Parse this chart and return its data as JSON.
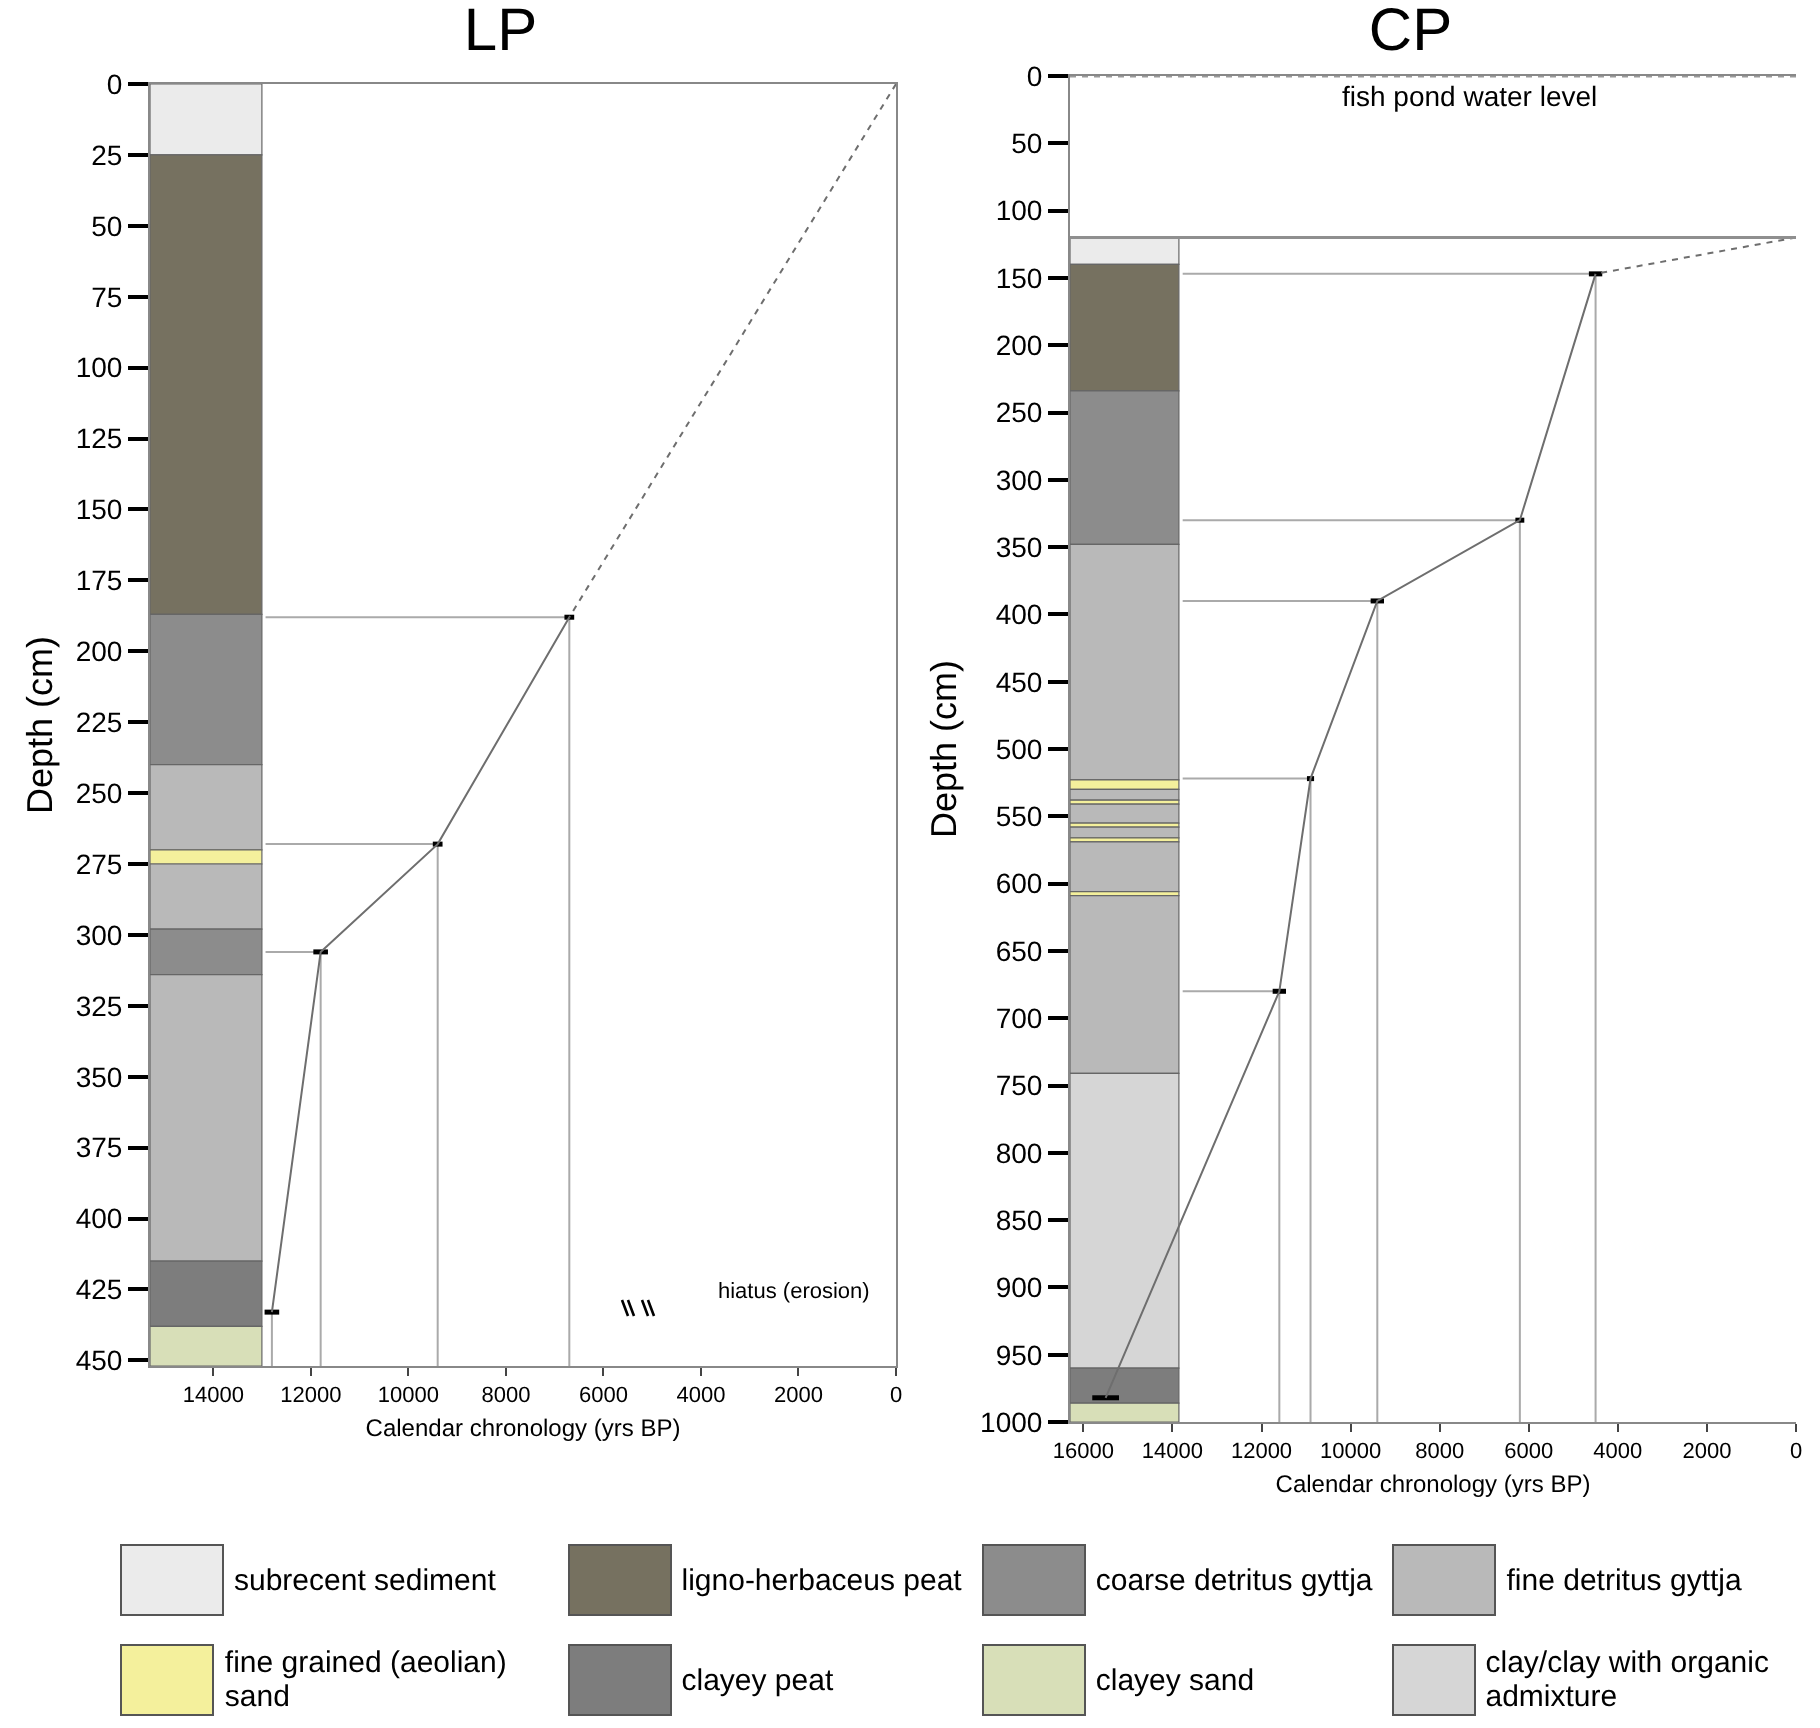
{
  "chart_data": [
    {
      "type": "line",
      "title": "LP",
      "xlabel": "Calendar chronology (yrs BP)",
      "ylabel": "Depth (cm)",
      "xlim": [
        15300,
        0
      ],
      "xticks": [
        14000,
        12000,
        10000,
        8000,
        6000,
        4000,
        2000,
        0
      ],
      "ylim": [
        452,
        0
      ],
      "yticks": [
        0,
        25,
        50,
        75,
        100,
        125,
        150,
        175,
        200,
        225,
        250,
        275,
        300,
        325,
        350,
        375,
        400,
        425,
        450
      ],
      "grid": false,
      "marker": "none",
      "series": [
        {
          "type": "line",
          "color": "#aaaaaa",
          "x": [
            12930,
            6700,
            6700
          ],
          "values": [
            188,
            188,
            452
          ],
          "line_style": "solid"
        },
        {
          "type": "line",
          "color": "#aaaaaa",
          "x": [
            12930,
            9400,
            9400
          ],
          "values": [
            268,
            268,
            452
          ],
          "line_style": "solid"
        },
        {
          "type": "line",
          "color": "#aaaaaa",
          "x": [
            12930,
            11800,
            11800
          ],
          "values": [
            306,
            306,
            452
          ],
          "line_style": "solid"
        },
        {
          "type": "line",
          "color": "#aaaaaa",
          "x": [
            12930,
            12800,
            12800
          ],
          "values": [
            433,
            433,
            452
          ],
          "line_style": "solid"
        },
        {
          "type": "line",
          "color": "#6e6e6e",
          "x": [
            6700,
            9400,
            11800,
            12800
          ],
          "values": [
            188,
            268,
            306,
            433
          ],
          "xerrors": [
            100,
            100,
            150,
            150
          ],
          "line_style": "solid"
        },
        {
          "type": "line",
          "color": "#6e6e6e",
          "x": [
            0,
            6700
          ],
          "values": [
            0,
            188
          ],
          "line_style": "dotted"
        }
      ],
      "bands": [
        {
          "axis": "y",
          "from": 0,
          "to": 25,
          "color": "#ebebeb"
        },
        {
          "axis": "y",
          "from": 25,
          "to": 187,
          "color": "#767160"
        },
        {
          "axis": "y",
          "from": 187,
          "to": 240,
          "color": "#8c8c8c"
        },
        {
          "axis": "y",
          "from": 240,
          "to": 270,
          "color": "#b9b9b9"
        },
        {
          "axis": "y",
          "from": 270,
          "to": 275,
          "color": "#f4f09c"
        },
        {
          "axis": "y",
          "from": 275,
          "to": 298,
          "color": "#b9b9b9"
        },
        {
          "axis": "y",
          "from": 298,
          "to": 314,
          "color": "#8c8c8c"
        },
        {
          "axis": "y",
          "from": 314,
          "to": 415,
          "color": "#b9b9b9"
        },
        {
          "axis": "y",
          "from": 415,
          "to": 438,
          "color": "#7d7d7d"
        },
        {
          "axis": "y",
          "from": 438,
          "to": 452,
          "color": "#d8dfb8"
        }
      ],
      "annotations": [
        "hiatus (erosion)",
        "subrecent sediment",
        "ligno-herbaceus peat",
        "coarse detritus gyttja",
        "fine detritus gyttja",
        "fine grained (aeolian) sand",
        "clayey peat",
        "clayey sand",
        "clay/clay with organic admixture"
      ]
    },
    {
      "type": "line",
      "title": "CP",
      "xlabel": "Calendar chronology (yrs BP)",
      "ylabel": "Depth (cm)",
      "xlim": [
        16300,
        0
      ],
      "xticks": [
        16000,
        14000,
        12000,
        10000,
        8000,
        6000,
        4000,
        2000,
        0
      ],
      "ylim": [
        1000,
        0
      ],
      "yticks": [
        0,
        50,
        100,
        150,
        200,
        250,
        300,
        350,
        400,
        450,
        500,
        550,
        600,
        650,
        700,
        750,
        800,
        850,
        900,
        950,
        1000
      ],
      "grid": false,
      "marker": "none",
      "series": [
        {
          "type": "line",
          "color": "#aaaaaa",
          "x": [
            13770,
            4500,
            4500
          ],
          "values": [
            147,
            147,
            1000
          ],
          "line_style": "solid"
        },
        {
          "type": "line",
          "color": "#aaaaaa",
          "x": [
            13770,
            6200,
            6200
          ],
          "values": [
            330,
            330,
            1000
          ],
          "line_style": "solid"
        },
        {
          "type": "line",
          "color": "#aaaaaa",
          "x": [
            13770,
            9400,
            9400
          ],
          "values": [
            390,
            390,
            1000
          ],
          "line_style": "solid"
        },
        {
          "type": "line",
          "color": "#aaaaaa",
          "x": [
            13770,
            10900,
            10900
          ],
          "values": [
            522,
            522,
            1000
          ],
          "line_style": "solid"
        },
        {
          "type": "line",
          "color": "#aaaaaa",
          "x": [
            13770,
            11600,
            11600
          ],
          "values": [
            680,
            680,
            1000
          ],
          "line_style": "solid"
        },
        {
          "type": "line",
          "color": "#6e6e6e",
          "x": [
            4500,
            6200,
            9400,
            10900,
            11600,
            15500
          ],
          "values": [
            147,
            330,
            390,
            522,
            680,
            982
          ],
          "xerrors": [
            150,
            100,
            150,
            80,
            150,
            300
          ],
          "line_style": "solid"
        },
        {
          "type": "line",
          "color": "#6e6e6e",
          "x": [
            0,
            4500
          ],
          "values": [
            120,
            147
          ],
          "line_style": "dotted"
        }
      ],
      "ref_lines": [
        {
          "axis": "y",
          "value": 0,
          "label": "fish pond water level",
          "line_style": "dotted",
          "color": "#9a9a9a"
        },
        {
          "axis": "y",
          "value": 120,
          "line_style": "solid",
          "color": "#8f8f8f"
        }
      ],
      "bands": [
        {
          "axis": "y",
          "from": 120,
          "to": 140,
          "color": "#ebebeb"
        },
        {
          "axis": "y",
          "from": 140,
          "to": 234,
          "color": "#767160"
        },
        {
          "axis": "y",
          "from": 234,
          "to": 348,
          "color": "#8c8c8c"
        },
        {
          "axis": "y",
          "from": 348,
          "to": 523,
          "color": "#b9b9b9"
        },
        {
          "axis": "y",
          "from": 523,
          "to": 530,
          "color": "#f4f09c"
        },
        {
          "axis": "y",
          "from": 530,
          "to": 538,
          "color": "#b9b9b9"
        },
        {
          "axis": "y",
          "from": 538,
          "to": 541,
          "color": "#f4f09c"
        },
        {
          "axis": "y",
          "from": 541,
          "to": 555,
          "color": "#b9b9b9"
        },
        {
          "axis": "y",
          "from": 555,
          "to": 558,
          "color": "#f4f09c"
        },
        {
          "axis": "y",
          "from": 558,
          "to": 566,
          "color": "#b9b9b9"
        },
        {
          "axis": "y",
          "from": 566,
          "to": 569,
          "color": "#f4f09c"
        },
        {
          "axis": "y",
          "from": 569,
          "to": 606,
          "color": "#b9b9b9"
        },
        {
          "axis": "y",
          "from": 606,
          "to": 609,
          "color": "#f4f09c"
        },
        {
          "axis": "y",
          "from": 609,
          "to": 741,
          "color": "#b9b9b9"
        },
        {
          "axis": "y",
          "from": 741,
          "to": 960,
          "color": "#d6d6d6"
        },
        {
          "axis": "y",
          "from": 960,
          "to": 986,
          "color": "#7d7d7d"
        },
        {
          "axis": "y",
          "from": 986,
          "to": 1000,
          "color": "#d8dfb8"
        }
      ]
    }
  ]
}
